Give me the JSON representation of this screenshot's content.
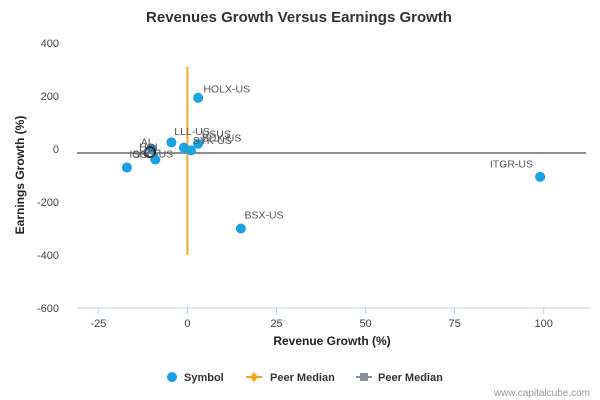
{
  "chart_data": {
    "type": "scatter",
    "title": "Revenues Growth Versus Earnings Growth",
    "xlabel": "Revenue Growth (%)",
    "ylabel": "Earnings Growth (%)",
    "xlim": [
      -31,
      113
    ],
    "ylim": [
      -600,
      400
    ],
    "xticks": [
      -25,
      0,
      25,
      50,
      75,
      100
    ],
    "yticks": [
      -600,
      -400,
      -200,
      0,
      200,
      400
    ],
    "grid": false,
    "legend_position": "bottom",
    "series": [
      {
        "name": "Symbol",
        "color": "#1ba1e2",
        "points": [
          {
            "label": "HOLX-US",
            "x": 3,
            "y": 193
          },
          {
            "label": "LLL-US",
            "x": -4.5,
            "y": 25
          },
          {
            "label": "USUS",
            "x": 3,
            "y": 20
          },
          {
            "label": "BDX-US",
            "x": -1,
            "y": 5
          },
          {
            "label": "AL",
            "x": -10,
            "y": 0
          },
          {
            "label": "SYK-US",
            "x": 1,
            "y": -5
          },
          {
            "label": "OS",
            "x": -17,
            "y": -70
          },
          {
            "label": "ISRG-US",
            "x": -9,
            "y": -40
          },
          {
            "label": "ITGR-US",
            "x": 99,
            "y": -105
          },
          {
            "label": "BSX-US",
            "x": 15,
            "y": -300
          }
        ]
      }
    ],
    "highlight": {
      "x": -10.5,
      "y": -12
    },
    "peer_median_x": {
      "name": "Peer Median",
      "value": 0,
      "range": [
        -400,
        310
      ],
      "color": "#f5a623"
    },
    "peer_median_y": {
      "name": "Peer Median",
      "value": -15,
      "color": "#8a8f97"
    }
  },
  "point_labels": [
    {
      "text": "HOLX-US",
      "x": 4.5,
      "y": 213,
      "anchor": "start"
    },
    {
      "text": "LLL-US",
      "x": -3.7,
      "y": 52,
      "anchor": "start"
    },
    {
      "text": "USUS",
      "x": 4,
      "y": 44,
      "anchor": "start"
    },
    {
      "text": "BDX-US",
      "x": 4,
      "y": 28,
      "anchor": "start"
    },
    {
      "text": "AL",
      "x": -9.5,
      "y": 14,
      "anchor": "end"
    },
    {
      "text": "SYK-US",
      "x": 1.5,
      "y": 18,
      "anchor": "start"
    },
    {
      "text": "HOL",
      "x": -7.5,
      "y": -6,
      "anchor": "end"
    },
    {
      "text": "ISRG-US",
      "x": -4,
      "y": -32,
      "anchor": "end"
    },
    {
      "text": "OS",
      "x": -15.5,
      "y": -34,
      "anchor": "start"
    },
    {
      "text": "ITGR-US",
      "x": 97,
      "y": -70,
      "anchor": "end"
    },
    {
      "text": "BSX-US",
      "x": 16,
      "y": -262,
      "anchor": "start"
    }
  ],
  "legend": [
    {
      "label": "Symbol",
      "icon": "circle-marker-icon",
      "color": "#1ba1e2"
    },
    {
      "label": "Peer Median",
      "icon": "diamond-line-icon",
      "color": "#f5a623"
    },
    {
      "label": "Peer Median",
      "icon": "square-line-icon",
      "color": "#8a8f97"
    }
  ],
  "credit": "www.capitalcube.com"
}
